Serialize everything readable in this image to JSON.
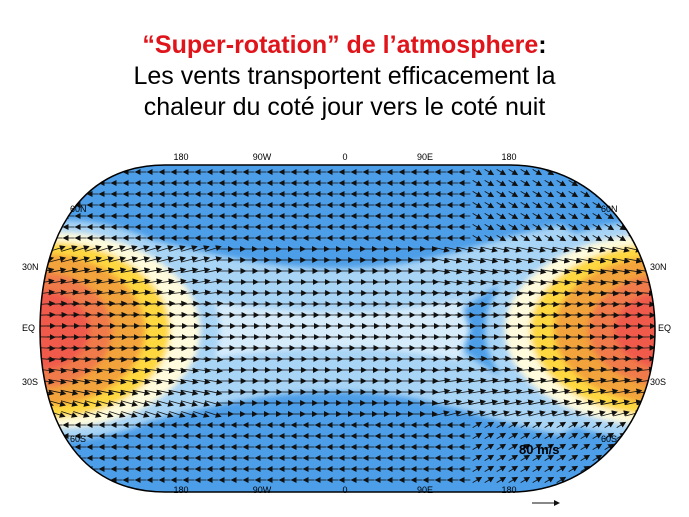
{
  "title": {
    "highlight": "“Super-rotation” de l’atmosphere",
    "colon": ":",
    "line2": "Les vents transportent efficacement la",
    "line3": "chaleur du coté jour vers le coté nuit"
  },
  "map": {
    "top_lon_labels": [
      "180",
      "90W",
      "0",
      "90E",
      "180"
    ],
    "bottom_lon_labels": [
      "180",
      "90W",
      "0",
      "90E",
      "180"
    ],
    "left_lat_labels": [
      "60N",
      "30N",
      "EQ",
      "30S",
      "60S"
    ],
    "right_lat_labels": [
      "60N",
      "30N",
      "EQ",
      "30S",
      "60S"
    ],
    "reference_vector_label": "80 m/s",
    "colors": {
      "ocean_blue": "#4d9ee8",
      "light_blue": "#a8d4f5",
      "pale": "#fffbdc",
      "yellow": "#ffd840",
      "orange": "#f3a33a",
      "red": "#f05a4c"
    }
  }
}
